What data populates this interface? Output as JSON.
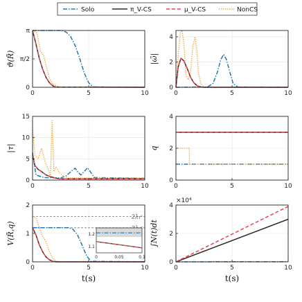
{
  "legend": [
    {
      "name": "Solo",
      "color": "#1f77b4",
      "dash": "6,2,1.5,2"
    },
    {
      "name": "π_V-CS",
      "color": "#2b2b2b",
      "dash": ""
    },
    {
      "name": "μ_V-CS",
      "color": "#e8434d",
      "dash": "5,3"
    },
    {
      "name": "NonCS",
      "color": "#f2a93b",
      "dash": "1.5,1.5"
    }
  ],
  "chart_data": [
    {
      "type": "line",
      "id": "theta",
      "ylabel": "ϑ(R̃)",
      "xlabel": "",
      "xlim": [
        0,
        10
      ],
      "ylim": [
        0,
        3.1416
      ],
      "xticks": [
        "0",
        "5",
        "10"
      ],
      "yticks": [
        {
          "v": 0,
          "t": "0"
        },
        {
          "v": 1.5708,
          "t": "π/2"
        },
        {
          "v": 3.1416,
          "t": "π"
        }
      ],
      "series": [
        {
          "name": "Solo",
          "x": [
            0,
            2.6,
            3.0,
            3.4,
            3.8,
            4.2,
            4.6,
            5.0,
            5.4,
            10
          ],
          "y": [
            3.14,
            3.14,
            3.05,
            2.8,
            2.3,
            1.6,
            0.8,
            0.25,
            0.02,
            0
          ]
        },
        {
          "name": "NonCS",
          "x": [
            0,
            0.4,
            0.7,
            1.0,
            1.2,
            1.5,
            1.8,
            2.1,
            2.4,
            10
          ],
          "y": [
            3.14,
            3.0,
            2.0,
            1.75,
            1.2,
            0.5,
            0.15,
            0.1,
            0.0,
            0
          ]
        },
        {
          "name": "π_V-CS",
          "x": [
            0,
            0.3,
            0.6,
            0.9,
            1.2,
            1.5,
            1.8,
            2.1,
            10
          ],
          "y": [
            3.14,
            2.4,
            1.6,
            1.0,
            0.55,
            0.25,
            0.08,
            0.01,
            0
          ]
        },
        {
          "name": "μ_V-CS",
          "x": [
            0,
            0.3,
            0.6,
            0.9,
            1.2,
            1.5,
            1.8,
            2.1,
            10
          ],
          "y": [
            3.14,
            2.4,
            1.6,
            1.0,
            0.55,
            0.25,
            0.08,
            0.01,
            0
          ]
        }
      ]
    },
    {
      "type": "line",
      "id": "omega",
      "ylabel": "|ω̃|",
      "xlabel": "",
      "xlim": [
        0,
        10
      ],
      "ylim": [
        0,
        4.5
      ],
      "xticks": [
        "0",
        "5",
        "10"
      ],
      "yticks": [
        {
          "v": 0,
          "t": "0"
        },
        {
          "v": 2,
          "t": "2"
        },
        {
          "v": 4,
          "t": "4"
        }
      ],
      "series": [
        {
          "name": "Solo",
          "x": [
            0,
            2.8,
            3.3,
            3.7,
            4.0,
            4.25,
            4.5,
            4.8,
            5.1,
            5.5,
            10
          ],
          "y": [
            0,
            0.02,
            0.3,
            1.2,
            2.2,
            2.6,
            2.2,
            1.2,
            0.3,
            0.02,
            0
          ]
        },
        {
          "name": "NonCS",
          "x": [
            0,
            0.2,
            0.4,
            0.55,
            0.7,
            0.9,
            1.1,
            1.3,
            1.5,
            1.7,
            1.85,
            2.0,
            2.2,
            2.5,
            10
          ],
          "y": [
            0,
            2.5,
            4.4,
            4.5,
            3.5,
            1.0,
            0.6,
            1.2,
            3.2,
            4.0,
            3.0,
            1.2,
            0.3,
            0.02,
            0
          ]
        },
        {
          "name": "π_V-CS",
          "x": [
            0,
            0.2,
            0.45,
            0.7,
            1.0,
            1.3,
            1.6,
            1.9,
            2.2,
            2.5,
            10
          ],
          "y": [
            0,
            1.6,
            2.3,
            2.1,
            1.5,
            0.8,
            0.35,
            0.12,
            0.03,
            0.0,
            0
          ]
        },
        {
          "name": "μ_V-CS",
          "x": [
            0,
            0.2,
            0.45,
            0.7,
            1.0,
            1.3,
            1.6,
            1.9,
            2.2,
            2.5,
            10
          ],
          "y": [
            0,
            1.6,
            2.3,
            2.1,
            1.5,
            0.8,
            0.35,
            0.12,
            0.03,
            0.0,
            0
          ]
        }
      ]
    },
    {
      "type": "line",
      "id": "tau",
      "ylabel": "|τ|",
      "xlabel": "",
      "xlim": [
        0,
        10
      ],
      "ylim": [
        0,
        15
      ],
      "xticks": [
        "0",
        "5",
        "10"
      ],
      "yticks": [
        {
          "v": 0,
          "t": "0"
        },
        {
          "v": 5,
          "t": "5"
        },
        {
          "v": 10,
          "t": "10"
        },
        {
          "v": 15,
          "t": "15"
        }
      ],
      "series": [
        {
          "name": "Solo",
          "x": [
            0,
            0.3,
            1.0,
            2.5,
            3.0,
            3.5,
            3.8,
            4.0,
            4.3,
            4.6,
            4.9,
            5.2,
            5.5,
            10
          ],
          "y": [
            6.5,
            1.2,
            0.6,
            0.5,
            1.0,
            2.2,
            2.8,
            2.0,
            1.2,
            2.0,
            2.9,
            1.8,
            0.6,
            0.4
          ]
        },
        {
          "name": "NonCS",
          "x": [
            0,
            0.2,
            0.5,
            0.8,
            1.1,
            1.4,
            1.6,
            1.75,
            1.9,
            2.1,
            2.4,
            2.8,
            3.2,
            10
          ],
          "y": [
            12.3,
            6.0,
            5.0,
            7.5,
            4.5,
            2.5,
            0.8,
            14.0,
            2.0,
            3.0,
            1.8,
            0.8,
            0.5,
            0.5
          ]
        },
        {
          "name": "π_V-CS",
          "x": [
            0,
            0.2,
            0.5,
            0.8,
            1.2,
            1.6,
            2.0,
            2.4,
            10
          ],
          "y": [
            6.0,
            3.5,
            2.5,
            2.0,
            1.2,
            0.8,
            0.5,
            0.3,
            0.3
          ]
        },
        {
          "name": "μ_V-CS",
          "x": [
            0,
            0.2,
            0.5,
            0.8,
            1.2,
            1.6,
            2.0,
            2.4,
            10
          ],
          "y": [
            6.0,
            3.5,
            2.5,
            2.0,
            1.2,
            0.8,
            0.5,
            0.3,
            0.3
          ]
        }
      ]
    },
    {
      "type": "line",
      "id": "q",
      "ylabel": "q",
      "xlabel": "",
      "xlim": [
        0,
        10
      ],
      "ylim": [
        0,
        4
      ],
      "xticks": [
        "0",
        "5",
        "10"
      ],
      "yticks": [
        {
          "v": 0,
          "t": "0"
        },
        {
          "v": 2,
          "t": "2"
        },
        {
          "v": 4,
          "t": "4"
        }
      ],
      "series": [
        {
          "name": "Solo",
          "x": [
            0,
            10
          ],
          "y": [
            1,
            1
          ]
        },
        {
          "name": "NonCS",
          "x": [
            0,
            1.2,
            1.2,
            10
          ],
          "y": [
            2,
            2,
            1,
            1
          ]
        },
        {
          "name": "π_V-CS",
          "x": [
            0,
            10
          ],
          "y": [
            3,
            3
          ]
        },
        {
          "name": "μ_V-CS",
          "x": [
            0,
            10
          ],
          "y": [
            3,
            3
          ]
        }
      ]
    },
    {
      "type": "line",
      "id": "V",
      "ylabel": "V(R̃,q)",
      "xlabel": "t(s)",
      "xlim": [
        0,
        10
      ],
      "ylim": [
        0,
        2
      ],
      "xticks": [
        "0",
        "5",
        "10"
      ],
      "yticks": [
        {
          "v": 0,
          "t": "0"
        },
        {
          "v": 1,
          "t": "1"
        },
        {
          "v": 2,
          "t": "2"
        }
      ],
      "annotations": [
        {
          "text": "2λ₁ᶜ",
          "y": 1.6
        },
        {
          "text": "2λ₂ᶜ",
          "y": 1.2
        }
      ],
      "series": [
        {
          "name": "Solo",
          "x": [
            0,
            3.2,
            3.6,
            4.0,
            4.4,
            4.8,
            5.2,
            10
          ],
          "y": [
            1.2,
            1.2,
            1.15,
            0.95,
            0.6,
            0.22,
            0.02,
            0
          ]
        },
        {
          "name": "NonCS",
          "x": [
            0,
            0.3,
            0.6,
            0.9,
            1.2,
            1.5,
            1.8,
            2.1,
            2.5,
            10
          ],
          "y": [
            1.6,
            1.55,
            1.2,
            0.9,
            0.7,
            0.35,
            0.12,
            0.03,
            0,
            0
          ]
        },
        {
          "name": "π_V-CS",
          "x": [
            0,
            0.3,
            0.6,
            0.9,
            1.2,
            1.5,
            1.8,
            2.1,
            10
          ],
          "y": [
            1.2,
            0.95,
            0.6,
            0.35,
            0.17,
            0.07,
            0.02,
            0,
            0
          ]
        },
        {
          "name": "μ_V-CS",
          "x": [
            0,
            0.3,
            0.6,
            0.9,
            1.2,
            1.5,
            1.8,
            2.1,
            10
          ],
          "y": [
            1.2,
            0.95,
            0.6,
            0.35,
            0.17,
            0.07,
            0.02,
            0,
            0
          ]
        }
      ],
      "inset": {
        "xlim": [
          0,
          0.1
        ],
        "ylim": [
          1.05,
          1.25
        ],
        "xticks": [
          "0",
          "0.05",
          "0.1"
        ],
        "yticks": [
          {
            "v": 1.1,
            "t": "1.1"
          },
          {
            "v": 1.2,
            "t": "1.2"
          }
        ],
        "series": [
          {
            "name": "Solo",
            "x": [
              0,
              0.1
            ],
            "y": [
              1.21,
              1.21
            ]
          },
          {
            "name": "π_V-CS",
            "x": [
              0,
              0.02,
              0.04,
              0.06,
              0.08,
              0.1
            ],
            "y": [
              1.14,
              1.13,
              1.12,
              1.11,
              1.1,
              1.09
            ]
          },
          {
            "name": "μ_V-CS",
            "x": [
              0,
              0.02,
              0.04,
              0.06,
              0.08,
              0.1
            ],
            "y": [
              1.14,
              1.13,
              1.12,
              1.11,
              1.1,
              1.09
            ]
          }
        ]
      }
    },
    {
      "type": "line",
      "id": "N",
      "ylabel": "∫N(t)dt",
      "xlabel": "t(s)",
      "xlim": [
        0,
        10
      ],
      "ylim": [
        0,
        40000
      ],
      "xticks": [
        "0",
        "5",
        "10"
      ],
      "yticks": [
        {
          "v": 0,
          "t": "0"
        },
        {
          "v": 20000,
          "t": "2"
        },
        {
          "v": 40000,
          "t": "4"
        }
      ],
      "exponent": "×10⁴",
      "series": [
        {
          "name": "Solo",
          "x": [
            0,
            10
          ],
          "y": [
            0,
            100
          ]
        },
        {
          "name": "NonCS",
          "x": [
            0,
            10
          ],
          "y": [
            0,
            30000
          ]
        },
        {
          "name": "π_V-CS",
          "x": [
            0,
            10
          ],
          "y": [
            0,
            30000
          ]
        },
        {
          "name": "μ_V-CS",
          "x": [
            0,
            10
          ],
          "y": [
            0,
            39000
          ]
        }
      ]
    }
  ]
}
